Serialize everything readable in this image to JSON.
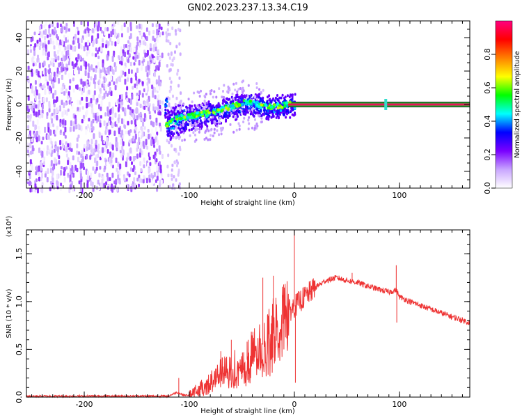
{
  "title": "GN02.2023.237.13.34.C19",
  "colors": {
    "snr_line": "#ee3333",
    "zero_band_center": "#e8105a",
    "zero_band_inner": "#22bb33",
    "zero_band_outer": "#111111"
  },
  "chart_data": [
    {
      "type": "heatmap",
      "xlabel": "Height of straight line (km)",
      "ylabel": "Frequency (Hz)",
      "xlim": [
        -255,
        167
      ],
      "ylim": [
        -50,
        50
      ],
      "xticks": [
        -200,
        -100,
        0,
        100
      ],
      "yticks": [
        -40,
        -20,
        0,
        20,
        40
      ],
      "colorbar": {
        "label": "Normalized spectral amplitude",
        "range": [
          0,
          1
        ],
        "ticks": [
          "0.0",
          "0.2",
          "0.4",
          "0.6",
          "0.8"
        ],
        "tick_values": [
          0,
          0.2,
          0.4,
          0.6,
          0.8
        ],
        "colormap": [
          "#ffffff",
          "#c9a6ff",
          "#7a00ff",
          "#0000ff",
          "#00ffff",
          "#00ff00",
          "#ffff00",
          "#ff8000",
          "#ff0000",
          "#ff0080"
        ]
      },
      "regions": [
        {
          "x_range": [
            -255,
            -126
          ],
          "y_range": [
            -50,
            50
          ],
          "amplitude_range": [
            0.0,
            0.2
          ],
          "description_kind": "noise"
        },
        {
          "x_range": [
            -126,
            -112
          ],
          "y_range": [
            -50,
            50
          ],
          "amplitude_range": [
            0.0,
            0.05
          ],
          "description_kind": "gap"
        },
        {
          "x_range": [
            -112,
            0
          ],
          "y_center": [
            -10,
            3
          ],
          "amplitude_range": [
            0.2,
            0.6
          ],
          "description_kind": "signal"
        },
        {
          "x_range": [
            0,
            167
          ],
          "y_center": [
            0,
            0
          ],
          "amplitude_range": [
            0.9,
            1.0
          ],
          "description_kind": "tone"
        }
      ],
      "ridge_points": [
        {
          "x": -122,
          "y": -12
        },
        {
          "x": -110,
          "y": -8
        },
        {
          "x": -100,
          "y": -7
        },
        {
          "x": -90,
          "y": -6
        },
        {
          "x": -80,
          "y": -5
        },
        {
          "x": -70,
          "y": -3
        },
        {
          "x": -60,
          "y": -1
        },
        {
          "x": -50,
          "y": 1
        },
        {
          "x": -42,
          "y": 1
        },
        {
          "x": -35,
          "y": 0
        },
        {
          "x": -25,
          "y": -1
        },
        {
          "x": -15,
          "y": -1
        },
        {
          "x": -5,
          "y": 0
        },
        {
          "x": 0,
          "y": 0
        }
      ],
      "marker_x": 87
    },
    {
      "type": "line",
      "xlabel": "Height of straight line (km)",
      "ylabel": "SNR (10 * v/v)",
      "y_multiplier": "(x10⁴)",
      "xlim": [
        -255,
        167
      ],
      "ylim": [
        0,
        1.75
      ],
      "xticks": [
        -200,
        -100,
        0,
        100
      ],
      "yticks": [
        "0.0",
        "0.5",
        "1.0",
        "1.5"
      ],
      "ytick_values": [
        0,
        0.5,
        1.0,
        1.5
      ],
      "x": [
        -255,
        -200,
        -150,
        -120,
        -112,
        -105,
        -100,
        -90,
        -80,
        -70,
        -60,
        -50,
        -40,
        -30,
        -20,
        -10,
        -5,
        0,
        10,
        20,
        30,
        40,
        50,
        60,
        70,
        80,
        90,
        97,
        100,
        110,
        120,
        130,
        140,
        150,
        167
      ],
      "values": [
        0.01,
        0.01,
        0.01,
        0.01,
        0.05,
        0.02,
        0.02,
        0.08,
        0.15,
        0.25,
        0.28,
        0.33,
        0.45,
        0.55,
        0.7,
        0.85,
        0.9,
        0.95,
        1.05,
        1.15,
        1.22,
        1.25,
        1.22,
        1.2,
        1.16,
        1.13,
        1.1,
        1.12,
        1.05,
        1.0,
        0.96,
        0.92,
        0.88,
        0.84,
        0.78
      ],
      "spikes": [
        {
          "x": -110,
          "y": 0.2
        },
        {
          "x": -70,
          "y": 0.48
        },
        {
          "x": -60,
          "y": 0.6
        },
        {
          "x": -45,
          "y": 0.58
        },
        {
          "x": -30,
          "y": 1.25
        },
        {
          "x": -20,
          "y": 1.27
        },
        {
          "x": -10,
          "y": 1.15
        },
        {
          "x": 0,
          "y": 1.75
        },
        {
          "x": 1,
          "y": 0.15
        },
        {
          "x": 55,
          "y": 1.3
        },
        {
          "x": 97,
          "y": 1.38
        },
        {
          "x": 97.5,
          "y": 0.78
        }
      ]
    }
  ]
}
